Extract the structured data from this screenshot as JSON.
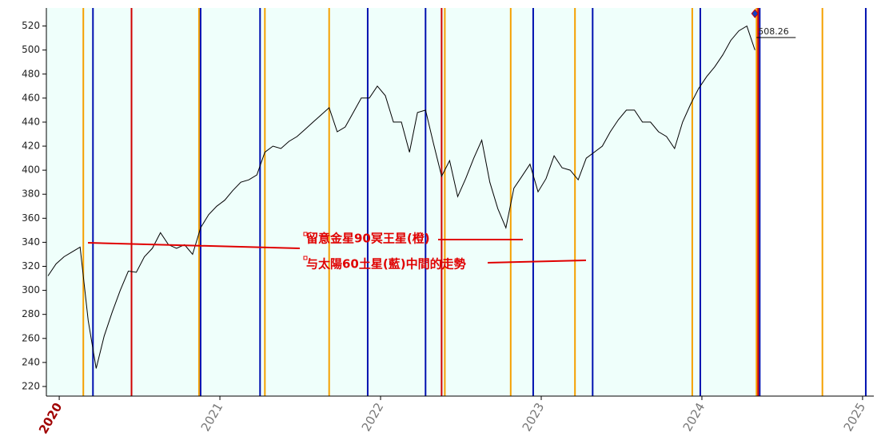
{
  "chart_data": {
    "type": "line",
    "x": [
      2019.93,
      2019.98,
      2020.03,
      2020.08,
      2020.13,
      2020.18,
      2020.23,
      2020.28,
      2020.33,
      2020.38,
      2020.43,
      2020.48,
      2020.53,
      2020.58,
      2020.63,
      2020.68,
      2020.73,
      2020.78,
      2020.83,
      2020.88,
      2020.93,
      2020.98,
      2021.03,
      2021.08,
      2021.13,
      2021.18,
      2021.23,
      2021.28,
      2021.33,
      2021.38,
      2021.43,
      2021.48,
      2021.53,
      2021.58,
      2021.63,
      2021.68,
      2021.73,
      2021.78,
      2021.83,
      2021.88,
      2021.93,
      2021.98,
      2022.03,
      2022.08,
      2022.13,
      2022.18,
      2022.23,
      2022.28,
      2022.33,
      2022.38,
      2022.43,
      2022.48,
      2022.53,
      2022.58,
      2022.63,
      2022.68,
      2022.73,
      2022.78,
      2022.83,
      2022.88,
      2022.93,
      2022.98,
      2023.03,
      2023.08,
      2023.13,
      2023.18,
      2023.23,
      2023.28,
      2023.33,
      2023.38,
      2023.43,
      2023.48,
      2023.53,
      2023.58,
      2023.63,
      2023.68,
      2023.73,
      2023.78,
      2023.83,
      2023.88,
      2023.93,
      2023.98,
      2024.03,
      2024.08,
      2024.13,
      2024.18,
      2024.23,
      2024.28,
      2024.33
    ],
    "series": [
      {
        "color": "#000000",
        "values": [
          312,
          322,
          328,
          332,
          336,
          275,
          235,
          262,
          282,
          300,
          316,
          315,
          328,
          335,
          348,
          338,
          335,
          338,
          330,
          352,
          363,
          370,
          375,
          383,
          390,
          392,
          396,
          415,
          420,
          418,
          424,
          428,
          434,
          440,
          446,
          452,
          432,
          436,
          448,
          460,
          460,
          470,
          462,
          440,
          440,
          415,
          448,
          450,
          422,
          395,
          408,
          378,
          393,
          410,
          425,
          390,
          368,
          352,
          385,
          395,
          405,
          382,
          393,
          412,
          402,
          400,
          392,
          410,
          415,
          420,
          432,
          442,
          450,
          450,
          440,
          440,
          432,
          428,
          418,
          440,
          455,
          468,
          478,
          486,
          496,
          508,
          516,
          520,
          500
        ]
      }
    ],
    "vertical_lines": [
      {
        "color": "#f5a000",
        "x": [
          2020.15,
          2020.87,
          2021.28,
          2021.68,
          2022.4,
          2022.81,
          2023.21,
          2023.94,
          2024.34,
          2024.75
        ]
      },
      {
        "color": "#0010b0",
        "x": [
          2020.21,
          2020.88,
          2021.25,
          2021.92,
          2022.28,
          2022.95,
          2023.32,
          2023.99,
          2024.36,
          2025.02
        ]
      },
      {
        "color": "#d00000",
        "x": [
          2020.45,
          2022.38,
          2024.35
        ]
      }
    ],
    "annotations": [
      "留意金星90冥王星(橙)",
      "与太陽60土星(藍)中間的走勢"
    ],
    "last_price": 508.26,
    "xlim": [
      2019.92,
      2025.07
    ],
    "xticks": [
      2020,
      2021,
      2022,
      2023,
      2024,
      2025
    ],
    "ylim": [
      212,
      535
    ],
    "yticks": [
      220,
      240,
      260,
      280,
      300,
      320,
      340,
      360,
      380,
      400,
      420,
      440,
      460,
      480,
      500,
      520
    ]
  }
}
